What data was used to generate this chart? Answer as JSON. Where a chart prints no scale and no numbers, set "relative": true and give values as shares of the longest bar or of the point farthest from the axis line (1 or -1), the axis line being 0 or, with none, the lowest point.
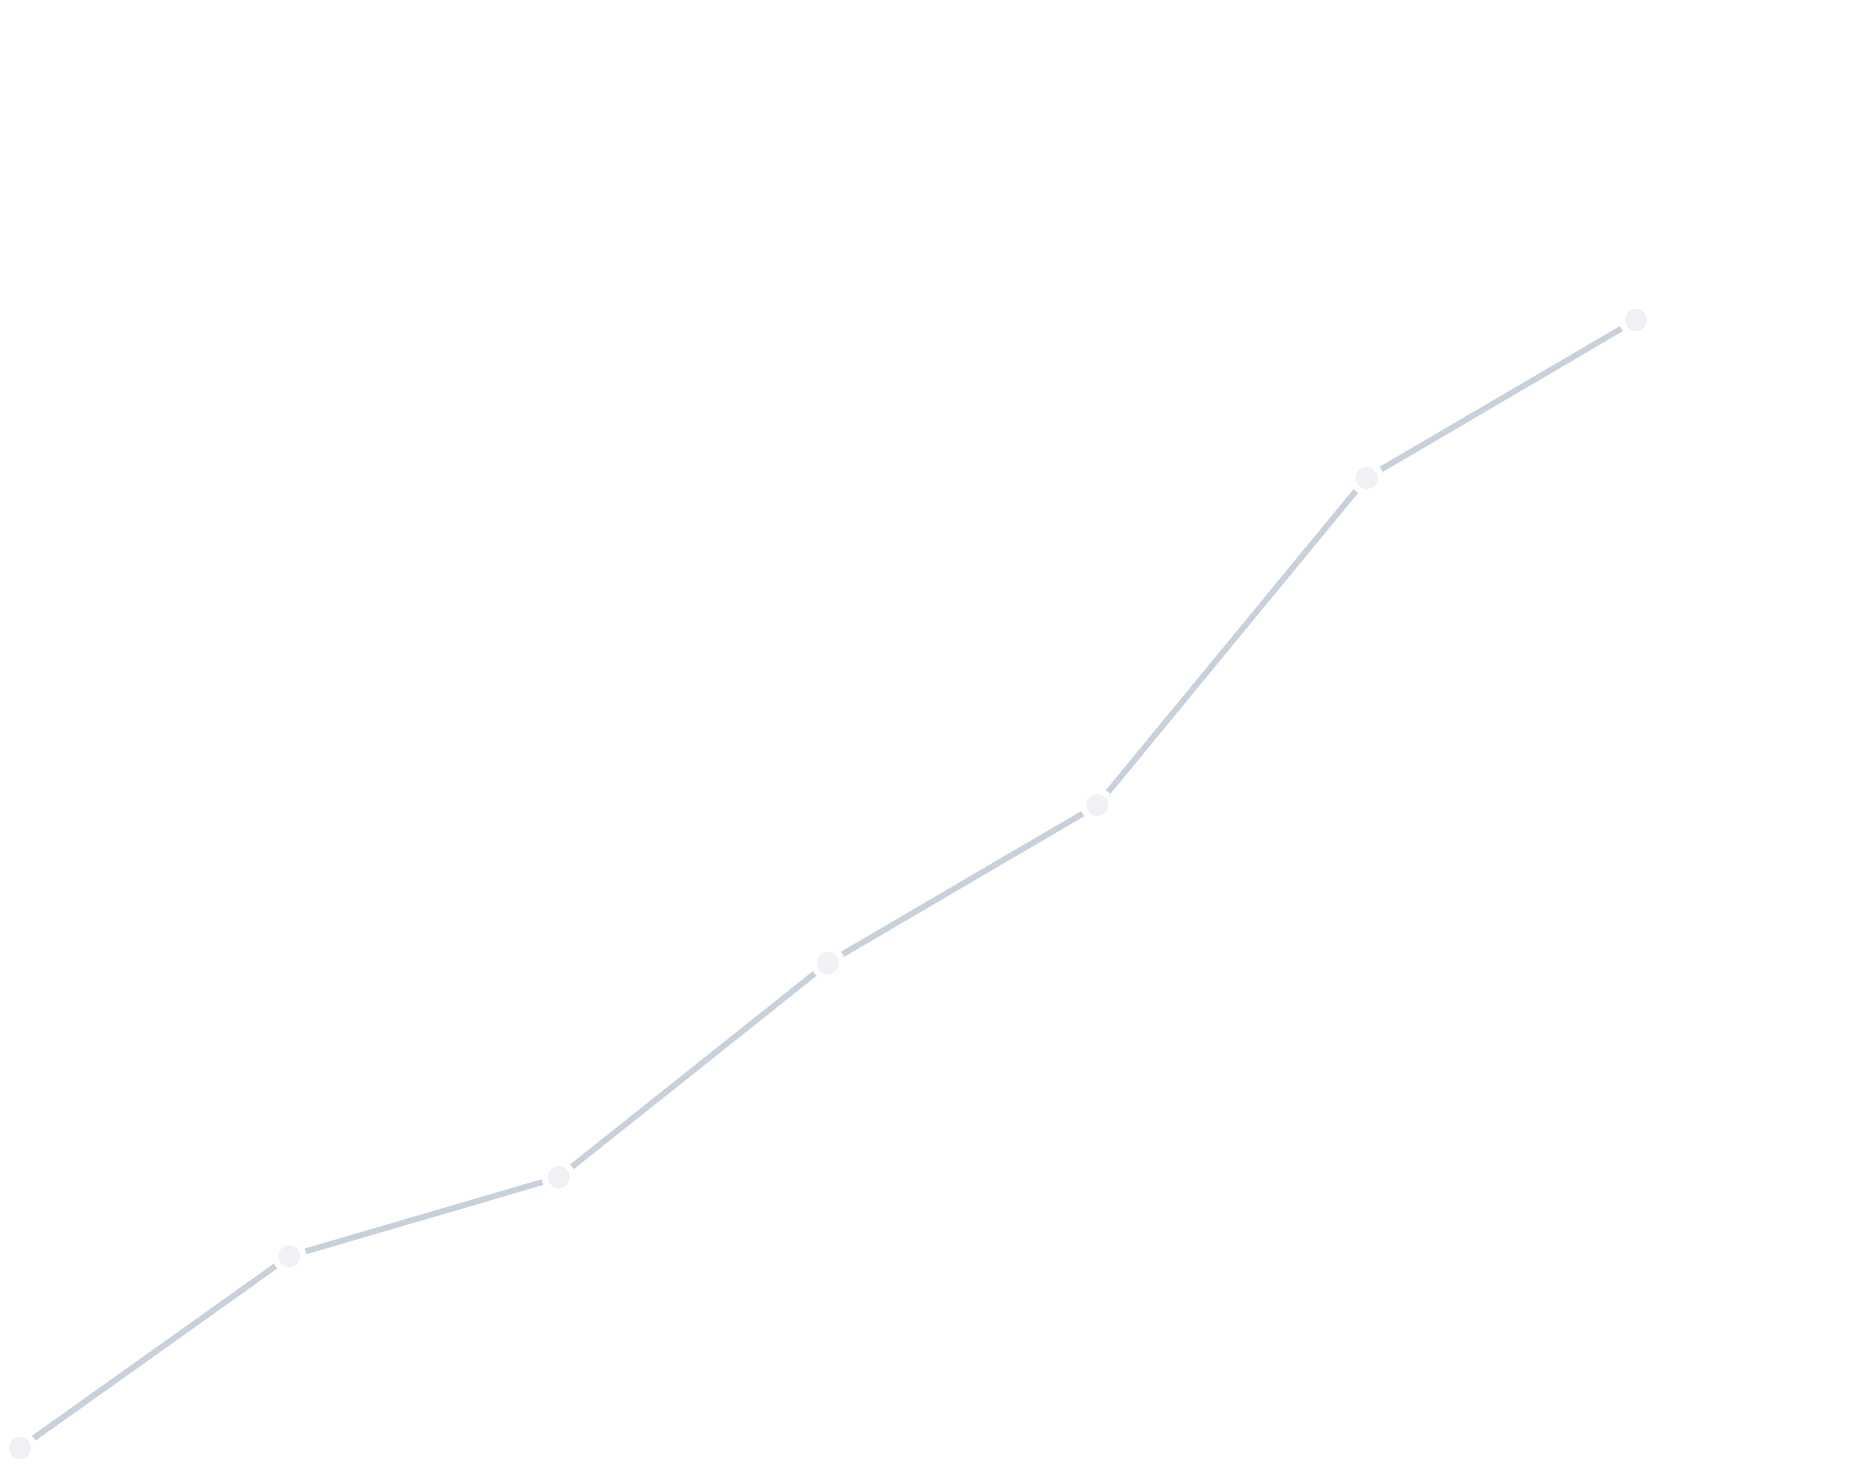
{
  "chart_data": {
    "type": "line",
    "relative": true,
    "categories": [
      null,
      null,
      null,
      null,
      null,
      null,
      null
    ],
    "series": [
      {
        "color": "#c8d0db",
        "values": [
          0,
          0.17,
          0.24,
          0.43,
          0.57,
          0.86,
          1
        ]
      }
    ],
    "marker": "circle",
    "line_style": "solid"
  }
}
